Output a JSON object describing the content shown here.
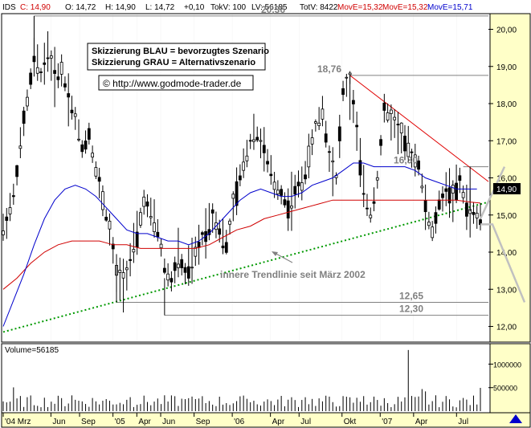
{
  "header": {
    "symbol": "IDS",
    "close": "C: 14,90",
    "open": "O: 14,72",
    "high": "H: 14,90",
    "low": "L: 14,72",
    "change": "+0,10",
    "tick_volume": "TokV: 100",
    "last_volume": "LV: 56185",
    "total_volume": "TotV: 8422",
    "mave1": "MovE=15,32",
    "mave2": "MovE=15,32",
    "mave3": "MovE=15,71",
    "colors": {
      "ma200": "#d00000",
      "ma200b": "#d00000",
      "ma50": "#0000cc"
    }
  },
  "legend_box": {
    "line1": "Skizzierung BLAU = bevorzugtes Szenario",
    "line2": "Skizzierung GRAU = Alternativszenario"
  },
  "watermark": "© http://www.godmode-trader.de",
  "trendline_label": "innere Trendlinie seit März 2002",
  "current_price_label": "14,90",
  "volume_label": "Volume=56185",
  "chart_data": {
    "type": "candlestick",
    "ylim": [
      11.6,
      20.4
    ],
    "yticks": [
      12.0,
      13.0,
      14.0,
      15.0,
      16.0,
      17.0,
      18.0,
      19.0,
      20.0
    ],
    "ytick_labels": [
      "12,00",
      "13,00",
      "14,00",
      "15,00",
      "16,00",
      "17,00",
      "18,00",
      "19,00",
      "20,00"
    ],
    "x_labels": [
      "'04 Mrz",
      "Jun",
      "Sep",
      "'05",
      "Apr",
      "Jun",
      "Sep",
      "'06",
      "Apr",
      "Jul",
      "Okt",
      "'07",
      "Apr",
      "Jul"
    ],
    "annotations": [
      {
        "label": "20,36",
        "value": 20.36
      },
      {
        "label": "18,76",
        "value": 18.76
      },
      {
        "label": "16,30",
        "value": 16.3
      },
      {
        "label": "12,65",
        "value": 12.65
      },
      {
        "label": "12,30",
        "value": 12.3
      }
    ],
    "price_path": [
      [
        0,
        14.6
      ],
      [
        3,
        15.5
      ],
      [
        6,
        17.5
      ],
      [
        9,
        19.2
      ],
      [
        11,
        18.8
      ],
      [
        13,
        19.4
      ],
      [
        15,
        18.7
      ],
      [
        17,
        18.9
      ],
      [
        19,
        18.2
      ],
      [
        21,
        17.6
      ],
      [
        23,
        16.8
      ],
      [
        25,
        17.2
      ],
      [
        27,
        16.2
      ],
      [
        29,
        15.4
      ],
      [
        31,
        14.6
      ],
      [
        33,
        13.4
      ],
      [
        35,
        13.2
      ],
      [
        37,
        13.8
      ],
      [
        39,
        14.4
      ],
      [
        41,
        15.4
      ],
      [
        43,
        15.0
      ],
      [
        45,
        14.6
      ],
      [
        47,
        13.6
      ],
      [
        49,
        13.2
      ],
      [
        51,
        13.9
      ],
      [
        53,
        13.4
      ],
      [
        55,
        13.7
      ],
      [
        57,
        14.2
      ],
      [
        59,
        14.6
      ],
      [
        61,
        15.0
      ],
      [
        63,
        14.6
      ],
      [
        65,
        14.2
      ],
      [
        67,
        15.2
      ],
      [
        69,
        16.0
      ],
      [
        71,
        16.7
      ],
      [
        73,
        17.3
      ],
      [
        75,
        17.0
      ],
      [
        77,
        16.4
      ],
      [
        79,
        15.8
      ],
      [
        81,
        15.6
      ],
      [
        83,
        15.2
      ],
      [
        85,
        15.6
      ],
      [
        87,
        15.9
      ],
      [
        89,
        16.5
      ],
      [
        91,
        17.4
      ],
      [
        93,
        17.8
      ],
      [
        95,
        16.6
      ],
      [
        97,
        16.0
      ],
      [
        99,
        18.3
      ],
      [
        101,
        18.7
      ],
      [
        103,
        17.2
      ],
      [
        105,
        15.6
      ],
      [
        107,
        15.0
      ],
      [
        109,
        16.0
      ],
      [
        111,
        17.8
      ],
      [
        113,
        17.6
      ],
      [
        115,
        17.3
      ],
      [
        117,
        16.9
      ],
      [
        119,
        16.6
      ],
      [
        121,
        16.4
      ],
      [
        123,
        15.2
      ],
      [
        125,
        14.5
      ],
      [
        127,
        15.3
      ],
      [
        129,
        15.7
      ],
      [
        131,
        15.5
      ],
      [
        133,
        15.9
      ],
      [
        135,
        15.2
      ],
      [
        137,
        15.0
      ],
      [
        139,
        14.9
      ]
    ],
    "ma_blue": [
      [
        0,
        12.0
      ],
      [
        3,
        12.7
      ],
      [
        6,
        13.4
      ],
      [
        9,
        14.2
      ],
      [
        12,
        14.9
      ],
      [
        15,
        15.4
      ],
      [
        18,
        15.7
      ],
      [
        21,
        15.8
      ],
      [
        24,
        15.7
      ],
      [
        27,
        15.5
      ],
      [
        30,
        15.2
      ],
      [
        33,
        14.9
      ],
      [
        36,
        14.6
      ],
      [
        39,
        14.5
      ],
      [
        42,
        14.5
      ],
      [
        45,
        14.4
      ],
      [
        48,
        14.3
      ],
      [
        51,
        14.3
      ],
      [
        54,
        14.2
      ],
      [
        57,
        14.3
      ],
      [
        60,
        14.5
      ],
      [
        63,
        14.8
      ],
      [
        66,
        15.1
      ],
      [
        69,
        15.4
      ],
      [
        72,
        15.6
      ],
      [
        75,
        15.7
      ],
      [
        78,
        15.6
      ],
      [
        81,
        15.5
      ],
      [
        84,
        15.5
      ],
      [
        87,
        15.6
      ],
      [
        90,
        15.8
      ],
      [
        93,
        15.9
      ],
      [
        96,
        16.0
      ],
      [
        99,
        16.2
      ],
      [
        102,
        16.4
      ],
      [
        105,
        16.4
      ],
      [
        108,
        16.3
      ],
      [
        111,
        16.3
      ],
      [
        114,
        16.3
      ],
      [
        117,
        16.3
      ],
      [
        120,
        16.2
      ],
      [
        123,
        16.0
      ],
      [
        126,
        15.9
      ],
      [
        129,
        15.8
      ],
      [
        132,
        15.7
      ],
      [
        135,
        15.7
      ],
      [
        138,
        15.7
      ]
    ],
    "ma_red": [
      [
        0,
        13.0
      ],
      [
        4,
        13.3
      ],
      [
        8,
        13.7
      ],
      [
        12,
        14.0
      ],
      [
        16,
        14.2
      ],
      [
        20,
        14.3
      ],
      [
        24,
        14.3
      ],
      [
        28,
        14.3
      ],
      [
        32,
        14.2
      ],
      [
        36,
        14.2
      ],
      [
        40,
        14.1
      ],
      [
        44,
        14.1
      ],
      [
        48,
        14.1
      ],
      [
        52,
        14.1
      ],
      [
        56,
        14.1
      ],
      [
        60,
        14.2
      ],
      [
        64,
        14.4
      ],
      [
        68,
        14.6
      ],
      [
        72,
        14.7
      ],
      [
        76,
        14.9
      ],
      [
        80,
        15.0
      ],
      [
        84,
        15.1
      ],
      [
        88,
        15.2
      ],
      [
        92,
        15.3
      ],
      [
        96,
        15.4
      ],
      [
        100,
        15.4
      ],
      [
        104,
        15.4
      ],
      [
        108,
        15.4
      ],
      [
        112,
        15.4
      ],
      [
        116,
        15.4
      ],
      [
        120,
        15.4
      ],
      [
        124,
        15.4
      ],
      [
        128,
        15.4
      ],
      [
        132,
        15.4
      ],
      [
        136,
        15.35
      ],
      [
        139,
        15.32
      ]
    ],
    "volume": {
      "yticks": [
        500000,
        1000000
      ],
      "ytick_labels": [
        "500000",
        "1000000"
      ],
      "ylim": [
        0,
        1400000
      ]
    }
  }
}
